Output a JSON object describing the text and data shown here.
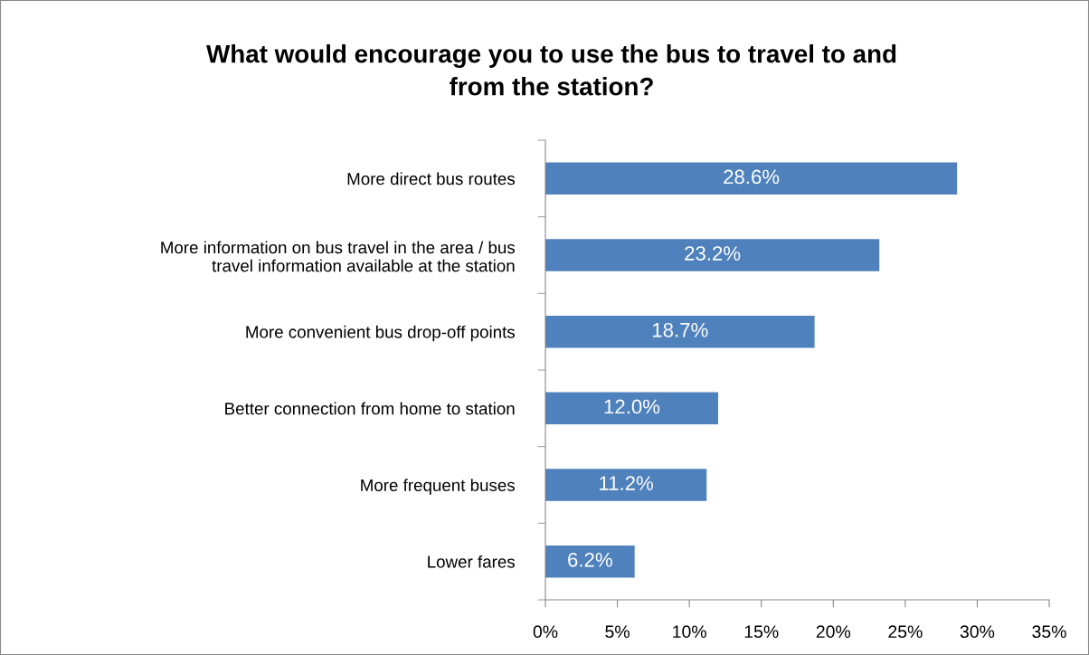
{
  "chart_data": {
    "type": "bar",
    "orientation": "horizontal",
    "title": "What would encourage you to use the bus to travel to and\nfrom the station?",
    "categories": [
      "More direct bus routes",
      "More information on bus travel in the area / bus\ntravel information available at the station",
      "More convenient bus drop-off points",
      "Better connection from home to station",
      "More frequent buses",
      "Lower fares"
    ],
    "values": [
      28.6,
      23.2,
      18.7,
      12.0,
      11.2,
      6.2
    ],
    "value_labels": [
      "28.6%",
      "23.2%",
      "18.7%",
      "12.0%",
      "11.2%",
      "6.2%"
    ],
    "color": "#4f81bd",
    "xlim": [
      0,
      35
    ],
    "xticks": [
      {
        "value": 0,
        "label": "0%"
      },
      {
        "value": 5,
        "label": "5%"
      },
      {
        "value": 10,
        "label": "10%"
      },
      {
        "value": 15,
        "label": "15%"
      },
      {
        "value": 20,
        "label": "20%"
      },
      {
        "value": 25,
        "label": "25%"
      },
      {
        "value": 30,
        "label": "30%"
      },
      {
        "value": 35,
        "label": "35%"
      }
    ],
    "grid": false,
    "legend": false
  }
}
